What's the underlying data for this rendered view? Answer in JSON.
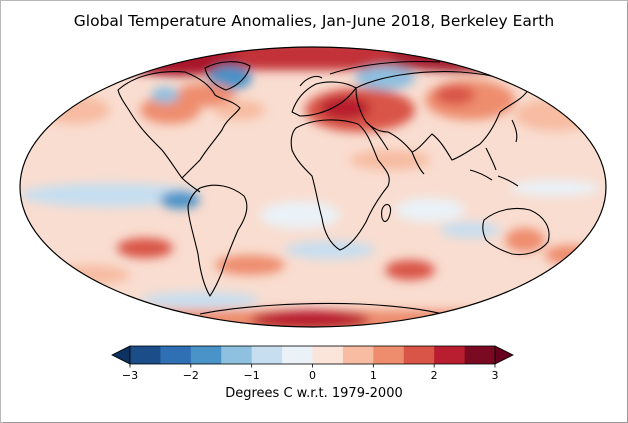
{
  "title": "Global Temperature Anomalies, Jan-June 2018, Berkeley Earth",
  "colorbar": {
    "label": "Degrees C w.r.t. 1979-2000",
    "ticks": [
      "−3",
      "−2",
      "−1",
      "0",
      "1",
      "2",
      "3"
    ],
    "tick_values": [
      -3,
      -2,
      -1,
      0,
      1,
      2,
      3
    ],
    "range": [
      -3,
      3
    ],
    "bin_colors": [
      "#1b4d88",
      "#2f6fb4",
      "#4a93c8",
      "#8ec0e0",
      "#c6def0",
      "#eaf2f8",
      "#fbe4da",
      "#f7bca2",
      "#ee8d6e",
      "#d95547",
      "#b81e2f",
      "#7a0a21"
    ],
    "extend_low_color": "#0d3262",
    "extend_high_color": "#67001f"
  },
  "map": {
    "projection": "Mollweide",
    "ocean_base_color": "#f9ddd0",
    "coastline_color": "#000000"
  }
}
